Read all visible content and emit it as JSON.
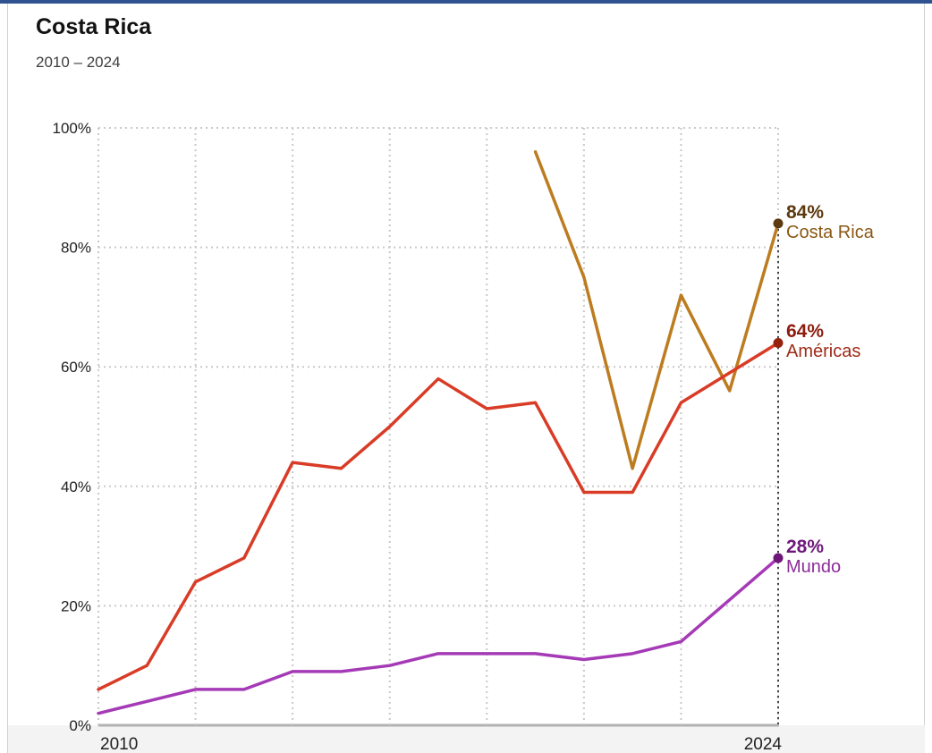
{
  "page": {
    "accent_bar_color": "#2f5391",
    "panel_border_color": "#cfcfcf",
    "footer_strip_color": "#f3f3f3",
    "background_color": "#ffffff"
  },
  "header": {
    "title": "Costa Rica",
    "subtitle": "2010 – 2024"
  },
  "chart_data": {
    "type": "line",
    "title": "Costa Rica",
    "subtitle": "2010 – 2024",
    "x": [
      2010,
      2011,
      2012,
      2013,
      2014,
      2015,
      2016,
      2017,
      2018,
      2019,
      2020,
      2021,
      2022,
      2023,
      2024
    ],
    "x_tick_years": [
      2010,
      2024
    ],
    "x_tick_labels": [
      "2010",
      "2024"
    ],
    "y_tick_values": [
      0,
      20,
      40,
      60,
      80,
      100
    ],
    "y_tick_labels": [
      "0%",
      "20%",
      "40%",
      "60%",
      "80%",
      "100%"
    ],
    "ylim": [
      0,
      100
    ],
    "grid": "dotted",
    "end_guide_line": true,
    "legend_position": "end-of-line-labels",
    "series": [
      {
        "id": "costa-rica",
        "name": "Costa Rica",
        "end_value_label": "84%",
        "line_color": "#bc7c1f",
        "marker_color": "#5c390f",
        "value_label_color": "#5c390f",
        "name_label_color": "#8a5815",
        "values": [
          null,
          null,
          null,
          null,
          null,
          null,
          null,
          null,
          null,
          96,
          75,
          43,
          72,
          56,
          84
        ]
      },
      {
        "id": "americas",
        "name": "Américas",
        "end_value_label": "64%",
        "line_color": "#d93c26",
        "marker_color": "#95210f",
        "value_label_color": "#8c1d0e",
        "name_label_color": "#9e2b18",
        "values": [
          6,
          10,
          24,
          28,
          44,
          43,
          50,
          58,
          53,
          54,
          39,
          39,
          54,
          59,
          64
        ]
      },
      {
        "id": "mundo",
        "name": "Mundo",
        "end_value_label": "28%",
        "line_color": "#a53ab6",
        "marker_color": "#6d1778",
        "value_label_color": "#6d187b",
        "name_label_color": "#8b2d97",
        "values": [
          2,
          4,
          6,
          6,
          9,
          9,
          10,
          12,
          12,
          12,
          11,
          12,
          14,
          21,
          28
        ]
      }
    ]
  }
}
